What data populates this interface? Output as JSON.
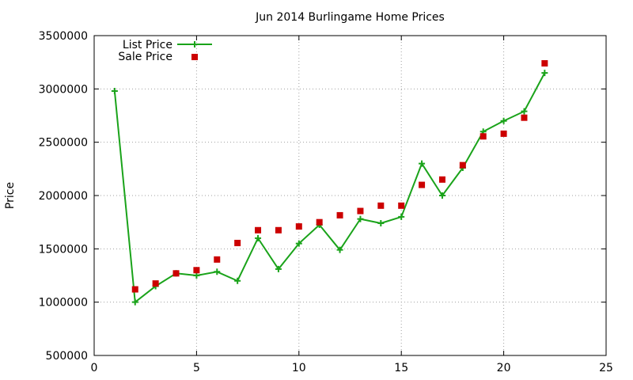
{
  "chart_data": {
    "type": "line",
    "title": "Jun 2014 Burlingame Home Prices",
    "xlabel": "",
    "ylabel": "Price",
    "xlim": [
      0,
      25
    ],
    "ylim": [
      500000,
      3500000
    ],
    "x_ticks": [
      0,
      5,
      10,
      15,
      20,
      25
    ],
    "y_ticks": [
      500000,
      1000000,
      1500000,
      2000000,
      2500000,
      3000000,
      3500000
    ],
    "grid": true,
    "legend_position": "top-left",
    "series": [
      {
        "name": "List Price",
        "style": "line-with-plus-markers",
        "color": "#1aa31a",
        "x": [
          1,
          2,
          3,
          4,
          5,
          6,
          7,
          8,
          9,
          10,
          11,
          12,
          13,
          14,
          15,
          16,
          17,
          18,
          19,
          20,
          21,
          22
        ],
        "values": [
          2980000,
          1000000,
          1150000,
          1270000,
          1250000,
          1285000,
          1200000,
          1600000,
          1310000,
          1550000,
          1725000,
          1490000,
          1780000,
          1740000,
          1800000,
          2300000,
          2000000,
          2260000,
          2600000,
          2700000,
          2790000,
          3150000
        ]
      },
      {
        "name": "Sale Price",
        "style": "square-markers",
        "color": "#cc0000",
        "x": [
          2,
          3,
          4,
          5,
          6,
          7,
          8,
          9,
          10,
          11,
          12,
          13,
          14,
          15,
          16,
          17,
          18,
          19,
          20,
          21,
          22
        ],
        "values": [
          1120000,
          1175000,
          1270000,
          1300000,
          1400000,
          1555000,
          1675000,
          1675000,
          1710000,
          1750000,
          1815000,
          1855000,
          1905000,
          1905000,
          2100000,
          2150000,
          2285000,
          2555000,
          2580000,
          2730000,
          3240000
        ]
      }
    ]
  }
}
